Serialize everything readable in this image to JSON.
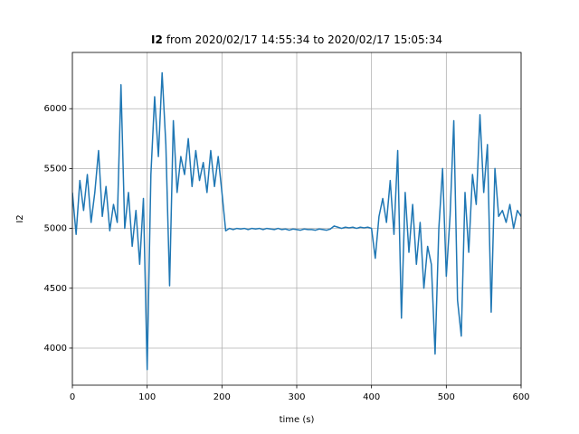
{
  "chart_data": {
    "type": "line",
    "title_bold": "I2",
    "title": "from 2020/02/17 14:55:34 to 2020/02/17 15:05:34",
    "xlabel": "time (s)",
    "ylabel": "I2",
    "color": "#1f77b4",
    "grid": true,
    "xlim": [
      0,
      600
    ],
    "xticks": [
      0,
      100,
      200,
      300,
      400,
      500,
      600
    ],
    "ylim": [
      3690,
      6470
    ],
    "yticks": [
      4000,
      4500,
      5000,
      5500,
      6000
    ],
    "x": [
      0,
      5,
      10,
      15,
      20,
      25,
      30,
      35,
      40,
      45,
      50,
      55,
      60,
      65,
      70,
      75,
      80,
      85,
      90,
      95,
      100,
      105,
      110,
      115,
      120,
      125,
      130,
      135,
      140,
      145,
      150,
      155,
      160,
      165,
      170,
      175,
      180,
      185,
      190,
      195,
      200,
      205,
      210,
      215,
      220,
      225,
      230,
      235,
      240,
      245,
      250,
      255,
      260,
      265,
      270,
      275,
      280,
      285,
      290,
      295,
      300,
      305,
      310,
      315,
      320,
      325,
      330,
      335,
      340,
      345,
      350,
      355,
      360,
      365,
      370,
      375,
      380,
      385,
      390,
      395,
      400,
      405,
      410,
      415,
      420,
      425,
      430,
      435,
      440,
      445,
      450,
      455,
      460,
      465,
      470,
      475,
      480,
      485,
      490,
      495,
      500,
      505,
      510,
      515,
      520,
      525,
      530,
      535,
      540,
      545,
      550,
      555,
      560,
      565,
      570,
      575,
      580,
      585,
      590,
      595,
      600
    ],
    "values": [
      5300,
      4950,
      5400,
      5150,
      5450,
      5050,
      5300,
      5650,
      5100,
      5350,
      4980,
      5200,
      5050,
      6200,
      5000,
      5300,
      4850,
      5150,
      4700,
      5250,
      3820,
      5450,
      6100,
      5600,
      6300,
      5700,
      4520,
      5900,
      5300,
      5600,
      5450,
      5750,
      5350,
      5650,
      5400,
      5550,
      5300,
      5650,
      5350,
      5600,
      5300,
      4980,
      5000,
      4990,
      5000,
      4995,
      5000,
      4990,
      5000,
      4995,
      5000,
      4990,
      5000,
      4995,
      4990,
      5000,
      4990,
      4995,
      4985,
      4995,
      4990,
      4985,
      4995,
      4990,
      4990,
      4985,
      4995,
      4990,
      4985,
      4995,
      5020,
      5010,
      5000,
      5010,
      5005,
      5010,
      5000,
      5010,
      5005,
      5010,
      5000,
      4750,
      5100,
      5250,
      5050,
      5400,
      4950,
      5650,
      4250,
      5300,
      4800,
      5200,
      4700,
      5050,
      4500,
      4850,
      4700,
      3950,
      5000,
      5500,
      4600,
      5100,
      5900,
      4400,
      4100,
      5300,
      4800,
      5450,
      5200,
      5950,
      5300,
      5700,
      4300,
      5500,
      5100,
      5150,
      5050,
      5200,
      5000,
      5150,
      5100
    ]
  }
}
